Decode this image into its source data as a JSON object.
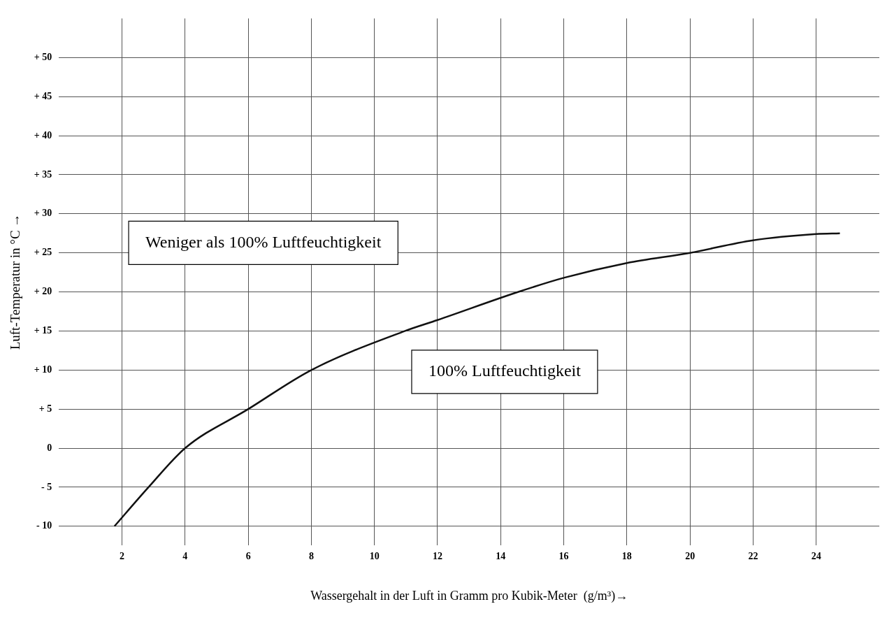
{
  "chart_data": {
    "type": "line",
    "xlabel": "Wassergehalt in der Luft in Gramm pro Kubik-Meter  (g/m³)→",
    "ylabel": "Luft-Temperatur in °C →",
    "x": [
      1.76,
      2.84,
      4,
      6,
      8,
      10.97,
      12,
      14.56,
      16,
      18,
      20,
      22,
      24,
      24.75
    ],
    "series": [
      {
        "color": "#111111",
        "values": [
          -10,
          -5,
          0,
          5,
          10,
          15,
          16.4,
          20,
          21.8,
          23.7,
          25,
          26.6,
          27.4,
          27.5
        ]
      }
    ],
    "xlim": [
      0,
      26
    ],
    "xticks": [
      2,
      4,
      6,
      8,
      10,
      12,
      14,
      16,
      18,
      20,
      22,
      24
    ],
    "ylim": [
      -12.4,
      55
    ],
    "yticks": [
      {
        "value": -10,
        "label": "- 10"
      },
      {
        "value": -5,
        "label": "- 5"
      },
      0,
      {
        "value": 5,
        "label": "+ 5"
      },
      {
        "value": 10,
        "label": "+ 10"
      },
      {
        "value": 15,
        "label": "+ 15"
      },
      {
        "value": 20,
        "label": "+ 20"
      },
      {
        "value": 25,
        "label": "+ 25"
      },
      {
        "value": 30,
        "label": "+ 30"
      },
      {
        "value": 35,
        "label": "+ 35"
      },
      {
        "value": 40,
        "label": "+ 40"
      },
      {
        "value": 45,
        "label": "+ 45"
      },
      {
        "value": 50,
        "label": "+ 50"
      }
    ],
    "annotations": [
      "Weniger als 100% Luftfeuchtigkeit",
      "100% Luftfeuchtigkeit"
    ],
    "grid": true,
    "legend": false,
    "marker": "none",
    "line_style": "solid"
  }
}
